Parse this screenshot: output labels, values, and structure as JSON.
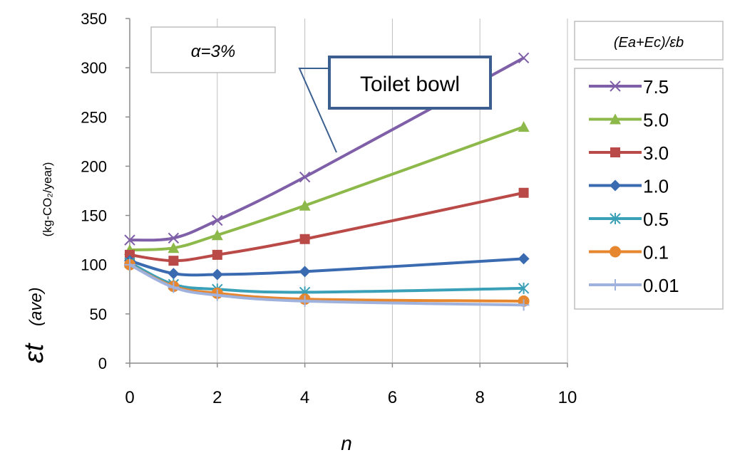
{
  "chart_data": {
    "type": "line",
    "title": "α=3%",
    "annotation": "Toilet bowl",
    "legend_title": "(Ea+Ec)/εb",
    "legend_position": "right",
    "xlabel": "n",
    "ylabel_symbol": "εt",
    "ylabel_sub": "(ave)",
    "ylabel_unit": "(kg-CO₂/year)",
    "xlim": [
      0,
      10
    ],
    "ylim": [
      0,
      350
    ],
    "x_ticks": [
      "0",
      "2",
      "4",
      "6",
      "8",
      "10"
    ],
    "y_ticks": [
      "0",
      "50",
      "100",
      "150",
      "200",
      "250",
      "300",
      "350"
    ],
    "grid": "vertical",
    "x": [
      0,
      1,
      2,
      4,
      9
    ],
    "series": [
      {
        "name": "7.5",
        "color": "#7f5fa8",
        "marker": "x",
        "values": [
          125,
          127,
          145,
          189,
          310
        ]
      },
      {
        "name": "5.0",
        "color": "#8db84a",
        "marker": "triangle",
        "values": [
          115,
          117,
          130,
          160,
          240
        ]
      },
      {
        "name": "3.0",
        "color": "#b94a48",
        "marker": "square",
        "values": [
          110,
          104,
          110,
          126,
          173
        ]
      },
      {
        "name": "1.0",
        "color": "#3a6ab0",
        "marker": "diamond",
        "values": [
          104,
          91,
          90,
          93,
          106
        ]
      },
      {
        "name": "0.5",
        "color": "#3aa0b8",
        "marker": "asterisk",
        "values": [
          102,
          80,
          75,
          72,
          76
        ]
      },
      {
        "name": "0.1",
        "color": "#e6862e",
        "marker": "circle",
        "values": [
          100,
          78,
          71,
          65,
          63
        ]
      },
      {
        "name": "0.01",
        "color": "#9fb2de",
        "marker": "plus",
        "values": [
          100,
          77,
          69,
          63,
          59
        ]
      }
    ]
  }
}
